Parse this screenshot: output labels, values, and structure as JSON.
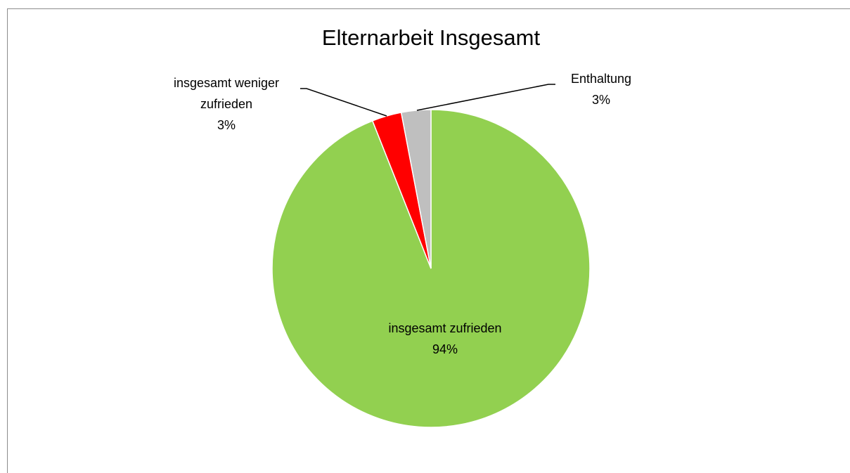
{
  "chart_data": {
    "type": "pie",
    "title": "Elternarbeit Insgesamt",
    "categories": [
      "insgesamt zufrieden",
      "insgesamt weniger zufrieden",
      "Enthaltung"
    ],
    "values": [
      94,
      3,
      3
    ],
    "value_labels": [
      "94%",
      "3%",
      "3%"
    ],
    "colors": [
      "#92d050",
      "#ff0000",
      "#bfbfbf"
    ]
  }
}
